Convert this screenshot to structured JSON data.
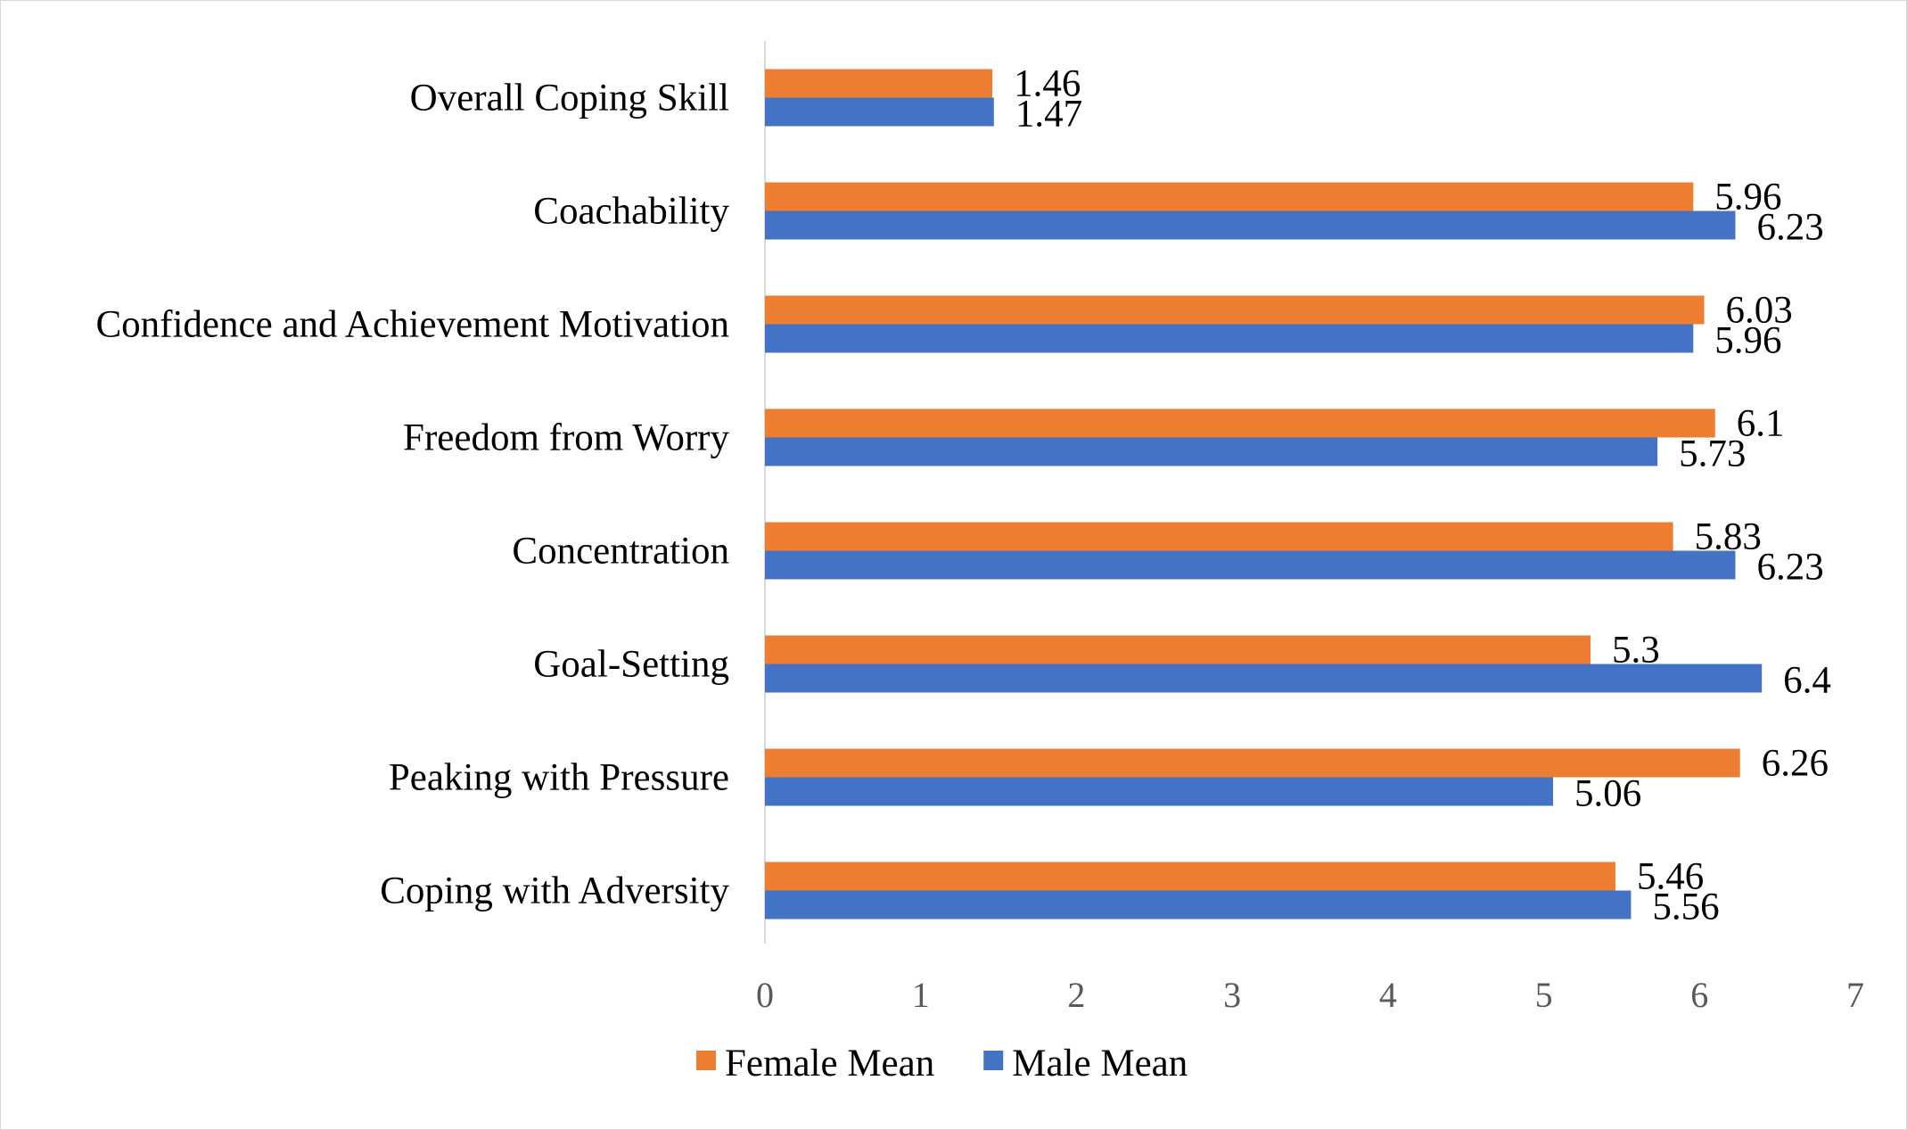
{
  "chart_data": {
    "type": "bar",
    "orientation": "horizontal",
    "title": "",
    "xlabel": "",
    "ylabel": "",
    "categories": [
      "Overall Coping Skill",
      "Coachability",
      "Confidence and Achievement Motivation",
      "Freedom from Worry",
      "Concentration",
      "Goal-Setting",
      "Peaking with Pressure",
      "Coping with Adversity"
    ],
    "series": [
      {
        "name": "Female Mean",
        "color": "#ED7D31",
        "values": [
          1.46,
          5.96,
          6.03,
          6.1,
          5.83,
          5.3,
          6.26,
          5.46
        ]
      },
      {
        "name": "Male Mean",
        "color": "#4472C4",
        "values": [
          1.47,
          6.23,
          5.96,
          5.73,
          6.23,
          6.4,
          5.06,
          5.56
        ]
      }
    ],
    "value_labels": {
      "Female Mean": [
        "1.46",
        "5.96",
        "6.03",
        "6.1",
        "5.83",
        "5.3",
        "6.26",
        "5.46"
      ],
      "Male Mean": [
        "1.47",
        "6.23",
        "5.96",
        "5.73",
        "6.23",
        "6.4",
        "5.06",
        "5.56"
      ]
    },
    "xlim": [
      0,
      7
    ],
    "x_ticks": [
      0,
      1,
      2,
      3,
      4,
      5,
      6,
      7
    ],
    "x_tick_labels": [
      "0",
      "1",
      "2",
      "3",
      "4",
      "5",
      "6",
      "7"
    ],
    "grid": false,
    "legend": {
      "position": "bottom",
      "entries": [
        "Female Mean",
        "Male Mean"
      ]
    }
  }
}
